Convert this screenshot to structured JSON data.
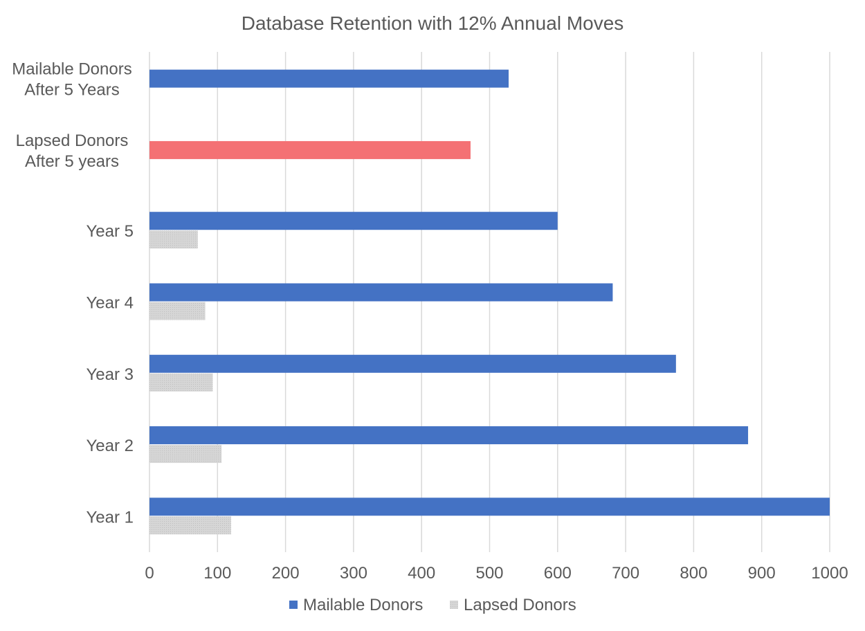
{
  "chart_data": {
    "type": "bar",
    "orientation": "horizontal",
    "title": "Database Retention with 12% Annual Moves",
    "categories": [
      [
        "Year 1"
      ],
      [
        "Year 2"
      ],
      [
        "Year 3"
      ],
      [
        "Year 4"
      ],
      [
        "Year 5"
      ],
      [
        "Lapsed Donors",
        "After 5 years"
      ],
      [
        "Mailable Donors",
        "After 5 Years"
      ]
    ],
    "series": [
      {
        "name": "Mailable Donors",
        "color": "#4472C4",
        "values": [
          1000,
          880,
          774,
          681,
          600,
          null,
          528
        ],
        "point_colors": {
          "5": "#F47174"
        }
      },
      {
        "name": "Lapsed Donors",
        "color": "#D0D0D0",
        "values": [
          120,
          106,
          93,
          82,
          71,
          472,
          null
        ],
        "point_colors": {
          "5": "#F47174"
        }
      }
    ],
    "xlim": [
      0,
      1000
    ],
    "xticks": [
      0,
      100,
      200,
      300,
      400,
      500,
      600,
      700,
      800,
      900,
      1000
    ],
    "grid": true,
    "legend_position": "bottom",
    "legend_entries": [
      "Mailable Donors",
      "Lapsed Donors"
    ]
  }
}
